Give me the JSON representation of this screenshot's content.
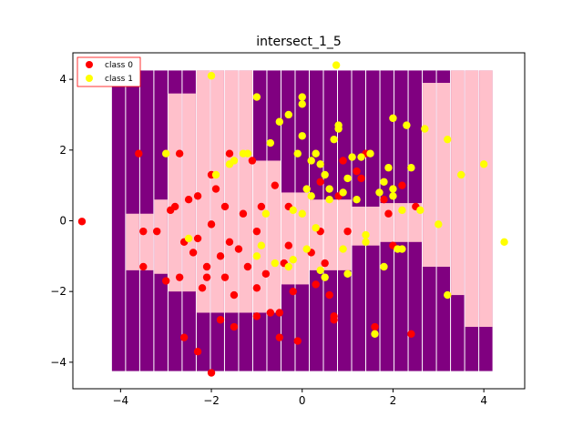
{
  "colors": {
    "class0": "#ff0000",
    "class1": "#ffff00",
    "region0": "#ffc0cb",
    "region1": "#800080",
    "legend_border": "#ff0000"
  },
  "chart_data": {
    "type": "scatter",
    "title": "intersect_1_5",
    "xlim": [
      -5.05,
      4.9
    ],
    "ylim": [
      -4.75,
      4.75
    ],
    "xticks": [
      -4,
      -2,
      0,
      2,
      4
    ],
    "yticks": [
      -4,
      -2,
      0,
      2,
      4
    ],
    "legend_position": "top-left",
    "grid": false,
    "series": [
      {
        "name": "class 0",
        "color": "#ff0000",
        "points": [
          [
            -4.85,
            -0.02
          ],
          [
            -3.5,
            -1.3
          ],
          [
            -3.5,
            -0.3
          ],
          [
            -3.6,
            1.9
          ],
          [
            -3.2,
            -0.3
          ],
          [
            -3.0,
            -1.7
          ],
          [
            -2.9,
            0.3
          ],
          [
            -2.8,
            0.4
          ],
          [
            -2.7,
            1.9
          ],
          [
            -2.6,
            -0.6
          ],
          [
            -2.5,
            0.6
          ],
          [
            -2.4,
            -0.9
          ],
          [
            -2.3,
            0.7
          ],
          [
            -2.3,
            -0.5
          ],
          [
            -2.2,
            -1.9
          ],
          [
            -2.1,
            -1.3
          ],
          [
            -2.0,
            1.3
          ],
          [
            -2.0,
            -0.1
          ],
          [
            -1.9,
            0.9
          ],
          [
            -1.8,
            -1.0
          ],
          [
            -1.7,
            -1.6
          ],
          [
            -1.7,
            0.4
          ],
          [
            -1.6,
            1.9
          ],
          [
            -1.6,
            -0.6
          ],
          [
            -1.5,
            -2.1
          ],
          [
            -1.4,
            -0.8
          ],
          [
            -1.3,
            0.2
          ],
          [
            -1.2,
            -1.3
          ],
          [
            -1.1,
            1.7
          ],
          [
            -1.0,
            -0.3
          ],
          [
            -1.0,
            -1.9
          ],
          [
            -0.9,
            0.4
          ],
          [
            -0.8,
            -1.5
          ],
          [
            -0.7,
            -2.6
          ],
          [
            -0.6,
            1.0
          ],
          [
            -0.5,
            -3.3
          ],
          [
            -0.4,
            -1.2
          ],
          [
            -0.3,
            0.4
          ],
          [
            -0.2,
            -2.0
          ],
          [
            -0.1,
            -3.4
          ],
          [
            0.2,
            -0.9
          ],
          [
            0.3,
            -1.8
          ],
          [
            0.4,
            1.1
          ],
          [
            0.5,
            -1.2
          ],
          [
            0.6,
            -2.1
          ],
          [
            0.7,
            -2.7
          ],
          [
            0.8,
            0.7
          ],
          [
            0.9,
            1.7
          ],
          [
            1.0,
            -0.3
          ],
          [
            1.2,
            1.4
          ],
          [
            1.4,
            1.9
          ],
          [
            1.6,
            -3.0
          ],
          [
            1.8,
            0.6
          ],
          [
            1.9,
            0.2
          ],
          [
            2.0,
            -0.7
          ],
          [
            2.2,
            1.0
          ],
          [
            2.4,
            -3.2
          ],
          [
            2.5,
            0.4
          ],
          [
            -2.6,
            -3.3
          ],
          [
            -2.3,
            -3.7
          ],
          [
            -2.0,
            -4.3
          ],
          [
            -1.8,
            -2.8
          ],
          [
            -1.0,
            -2.7
          ],
          [
            -0.3,
            -0.7
          ],
          [
            -2.7,
            -1.6
          ],
          [
            -2.1,
            -1.6
          ],
          [
            -1.5,
            -3.0
          ],
          [
            -0.5,
            -2.6
          ],
          [
            0.4,
            -0.3
          ],
          [
            0.7,
            -2.8
          ],
          [
            1.3,
            1.2
          ]
        ]
      },
      {
        "name": "class 1",
        "color": "#ffff00",
        "points": [
          [
            -3.0,
            1.9
          ],
          [
            -2.0,
            4.1
          ],
          [
            -1.9,
            1.3
          ],
          [
            -1.6,
            1.6
          ],
          [
            -1.3,
            1.9
          ],
          [
            -1.0,
            3.5
          ],
          [
            -0.9,
            -0.7
          ],
          [
            -0.7,
            2.2
          ],
          [
            -0.5,
            2.8
          ],
          [
            -0.3,
            3.0
          ],
          [
            -0.2,
            0.3
          ],
          [
            0.0,
            3.3
          ],
          [
            0.0,
            3.5
          ],
          [
            0.0,
            2.4
          ],
          [
            0.1,
            0.9
          ],
          [
            0.2,
            1.7
          ],
          [
            0.3,
            1.9
          ],
          [
            0.4,
            1.6
          ],
          [
            0.5,
            1.3
          ],
          [
            0.6,
            0.6
          ],
          [
            0.7,
            2.3
          ],
          [
            0.75,
            4.4
          ],
          [
            0.8,
            2.7
          ],
          [
            0.8,
            2.6
          ],
          [
            0.9,
            0.8
          ],
          [
            1.0,
            1.2
          ],
          [
            1.1,
            1.8
          ],
          [
            1.2,
            0.6
          ],
          [
            1.3,
            1.8
          ],
          [
            1.4,
            -0.4
          ],
          [
            1.4,
            -0.6
          ],
          [
            1.5,
            1.9
          ],
          [
            1.6,
            -3.2
          ],
          [
            1.7,
            0.8
          ],
          [
            1.8,
            1.1
          ],
          [
            1.9,
            1.5
          ],
          [
            2.0,
            0.7
          ],
          [
            2.0,
            2.9
          ],
          [
            2.1,
            -0.8
          ],
          [
            2.2,
            0.3
          ],
          [
            2.3,
            2.7
          ],
          [
            2.4,
            1.5
          ],
          [
            2.6,
            0.3
          ],
          [
            2.7,
            2.6
          ],
          [
            3.0,
            -0.1
          ],
          [
            3.2,
            -2.1
          ],
          [
            3.2,
            2.3
          ],
          [
            3.5,
            1.3
          ],
          [
            4.0,
            1.6
          ],
          [
            4.45,
            -0.6
          ],
          [
            -0.2,
            -1.1
          ],
          [
            -0.3,
            -1.3
          ],
          [
            -0.6,
            -1.2
          ],
          [
            -0.8,
            0.2
          ],
          [
            -1.0,
            -1.0
          ],
          [
            0.1,
            -0.8
          ],
          [
            0.4,
            -1.4
          ],
          [
            0.5,
            -1.6
          ],
          [
            0.9,
            -0.8
          ],
          [
            1.0,
            -1.5
          ],
          [
            0.0,
            0.2
          ],
          [
            0.2,
            0.7
          ],
          [
            0.3,
            -0.2
          ],
          [
            -1.5,
            1.7
          ],
          [
            -0.1,
            1.9
          ],
          [
            -2.5,
            -0.5
          ],
          [
            2.0,
            0.9
          ],
          [
            1.8,
            -1.3
          ],
          [
            -1.2,
            1.9
          ],
          [
            0.6,
            0.9
          ],
          [
            2.2,
            -0.8
          ]
        ]
      }
    ]
  }
}
